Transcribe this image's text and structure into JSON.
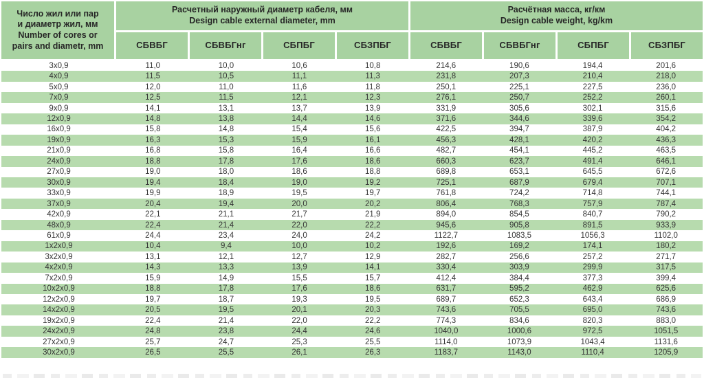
{
  "colors": {
    "header_green": "#a8d2a1",
    "stripe_green": "#b7dbae",
    "header_text": "#262626",
    "value_text": "#353535"
  },
  "table": {
    "corner_header": {
      "ru_line1": "Число жил или пар",
      "ru_line2": "и диаметр жил, мм",
      "en_line1": "Number of cores or",
      "en_line2": "pairs and diametr, mm"
    },
    "group_headers": {
      "diameter_ru": "Расчетный наружный диаметр кабеля, мм",
      "diameter_en": "Design cable external diameter, mm",
      "weight_ru": "Расчётная масса, кг/км",
      "weight_en": "Design cable weight, kg/km"
    },
    "sub_headers": [
      "СБВБГ",
      "СБВБГнг",
      "СБПБГ",
      "СБЗПБГ"
    ],
    "rows": [
      {
        "label": "3x0,9",
        "diameter": [
          "11,0",
          "10,0",
          "10,6",
          "10,8"
        ],
        "weight": [
          "214,6",
          "190,6",
          "194,4",
          "201,6"
        ]
      },
      {
        "label": "4x0,9",
        "diameter": [
          "11,5",
          "10,5",
          "11,1",
          "11,3"
        ],
        "weight": [
          "231,8",
          "207,3",
          "210,4",
          "218,0"
        ]
      },
      {
        "label": "5x0,9",
        "diameter": [
          "12,0",
          "11,0",
          "11,6",
          "11,8"
        ],
        "weight": [
          "250,1",
          "225,1",
          "227,5",
          "236,0"
        ]
      },
      {
        "label": "7x0,9",
        "diameter": [
          "12,5",
          "11,5",
          "12,1",
          "12,3"
        ],
        "weight": [
          "276,1",
          "250,7",
          "252,2",
          "260,1"
        ]
      },
      {
        "label": "9x0,9",
        "diameter": [
          "14,1",
          "13,1",
          "13,7",
          "13,9"
        ],
        "weight": [
          "331,9",
          "305,6",
          "302,1",
          "315,6"
        ]
      },
      {
        "label": "12x0,9",
        "diameter": [
          "14,8",
          "13,8",
          "14,4",
          "14,6"
        ],
        "weight": [
          "371,6",
          "344,6",
          "339,6",
          "354,2"
        ]
      },
      {
        "label": "16x0,9",
        "diameter": [
          "15,8",
          "14,8",
          "15,4",
          "15,6"
        ],
        "weight": [
          "422,5",
          "394,7",
          "387,9",
          "404,2"
        ]
      },
      {
        "label": "19x0,9",
        "diameter": [
          "16,3",
          "15,3",
          "15,9",
          "16,1"
        ],
        "weight": [
          "456,3",
          "428,1",
          "420,2",
          "436,3"
        ]
      },
      {
        "label": "21x0,9",
        "diameter": [
          "16,8",
          "15,8",
          "16,4",
          "16,6"
        ],
        "weight": [
          "482,7",
          "454,1",
          "445,2",
          "463,5"
        ]
      },
      {
        "label": "24x0,9",
        "diameter": [
          "18,8",
          "17,8",
          "17,6",
          "18,6"
        ],
        "weight": [
          "660,3",
          "623,7",
          "491,4",
          "646,1"
        ]
      },
      {
        "label": "27x0,9",
        "diameter": [
          "19,0",
          "18,0",
          "18,6",
          "18,8"
        ],
        "weight": [
          "689,8",
          "653,1",
          "645,5",
          "672,6"
        ]
      },
      {
        "label": "30x0,9",
        "diameter": [
          "19,4",
          "18,4",
          "19,0",
          "19,2"
        ],
        "weight": [
          "725,1",
          "687,9",
          "679,4",
          "707,1"
        ]
      },
      {
        "label": "33x0,9",
        "diameter": [
          "19,9",
          "18,9",
          "19,5",
          "19,7"
        ],
        "weight": [
          "761,8",
          "724,2",
          "714,8",
          "744,1"
        ]
      },
      {
        "label": "37x0,9",
        "diameter": [
          "20,4",
          "19,4",
          "20,0",
          "20,2"
        ],
        "weight": [
          "806,4",
          "768,3",
          "757,9",
          "787,4"
        ]
      },
      {
        "label": "42x0,9",
        "diameter": [
          "22,1",
          "21,1",
          "21,7",
          "21,9"
        ],
        "weight": [
          "894,0",
          "854,5",
          "840,7",
          "790,2"
        ]
      },
      {
        "label": "48x0,9",
        "diameter": [
          "22,4",
          "21,4",
          "22,0",
          "22,2"
        ],
        "weight": [
          "945,6",
          "905,8",
          "891,5",
          "933,9"
        ]
      },
      {
        "label": "61x0,9",
        "diameter": [
          "24,4",
          "23,4",
          "24,0",
          "24,2"
        ],
        "weight": [
          "1122,7",
          "1083,5",
          "1056,3",
          "1102,0"
        ]
      },
      {
        "label": "1x2x0,9",
        "diameter": [
          "10,4",
          "9,4",
          "10,0",
          "10,2"
        ],
        "weight": [
          "192,6",
          "169,2",
          "174,1",
          "180,2"
        ]
      },
      {
        "label": "3x2x0,9",
        "diameter": [
          "13,1",
          "12,1",
          "12,7",
          "12,9"
        ],
        "weight": [
          "282,7",
          "256,6",
          "257,2",
          "271,7"
        ]
      },
      {
        "label": "4x2x0,9",
        "diameter": [
          "14,3",
          "13,3",
          "13,9",
          "14,1"
        ],
        "weight": [
          "330,4",
          "303,9",
          "299,9",
          "317,5"
        ]
      },
      {
        "label": "7x2x0,9",
        "diameter": [
          "15,9",
          "14,9",
          "15,5",
          "15,7"
        ],
        "weight": [
          "412,4",
          "384,4",
          "377,3",
          "399,4"
        ]
      },
      {
        "label": "10x2x0,9",
        "diameter": [
          "18,8",
          "17,8",
          "17,6",
          "18,6"
        ],
        "weight": [
          "631,7",
          "595,2",
          "462,9",
          "625,6"
        ]
      },
      {
        "label": "12x2x0,9",
        "diameter": [
          "19,7",
          "18,7",
          "19,3",
          "19,5"
        ],
        "weight": [
          "689,7",
          "652,3",
          "643,4",
          "686,9"
        ]
      },
      {
        "label": "14x2x0,9",
        "diameter": [
          "20,5",
          "19,5",
          "20,1",
          "20,3"
        ],
        "weight": [
          "743,6",
          "705,5",
          "695,0",
          "743,6"
        ]
      },
      {
        "label": "19x2x0,9",
        "diameter": [
          "22,4",
          "21,4",
          "22,0",
          "22,2"
        ],
        "weight": [
          "774,3",
          "834,6",
          "820,3",
          "883,0"
        ]
      },
      {
        "label": "24x2x0,9",
        "diameter": [
          "24,8",
          "23,8",
          "24,4",
          "24,6"
        ],
        "weight": [
          "1040,0",
          "1000,6",
          "972,5",
          "1051,5"
        ]
      },
      {
        "label": "27x2x0,9",
        "diameter": [
          "25,7",
          "24,7",
          "25,3",
          "25,5"
        ],
        "weight": [
          "1114,0",
          "1073,9",
          "1043,4",
          "1131,6"
        ]
      },
      {
        "label": "30x2x0,9",
        "diameter": [
          "26,5",
          "25,5",
          "26,1",
          "26,3"
        ],
        "weight": [
          "1183,7",
          "1143,0",
          "1110,4",
          "1205,9"
        ]
      }
    ]
  }
}
